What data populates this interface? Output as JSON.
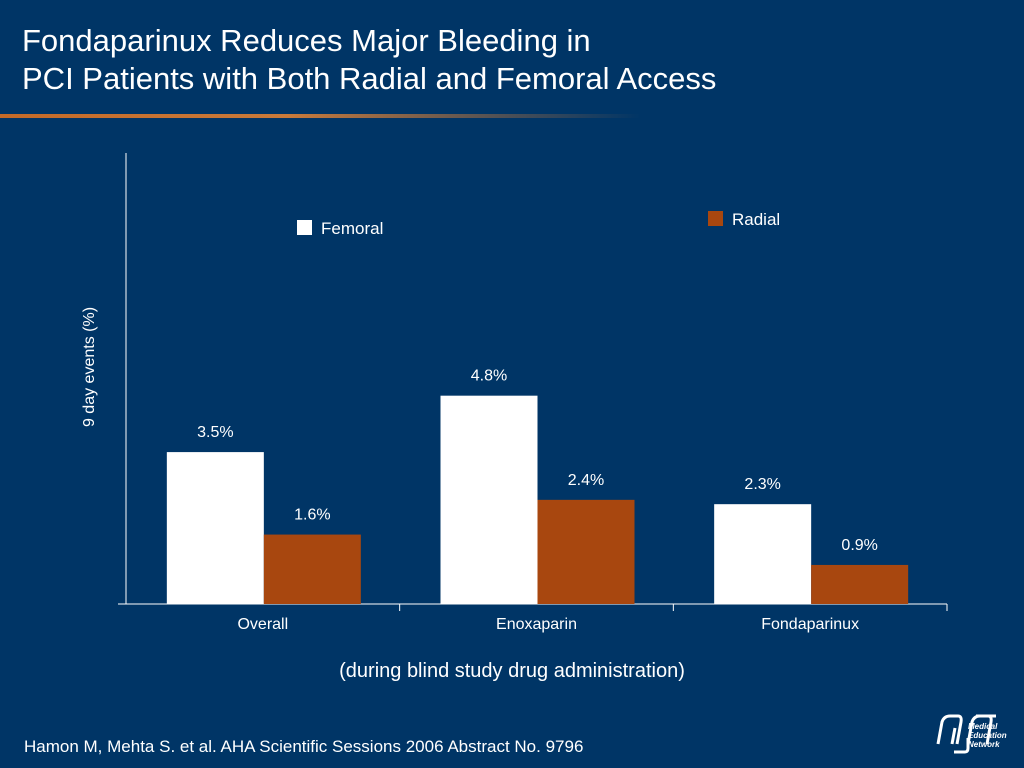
{
  "title": {
    "line1": "Fondaparinux Reduces Major Bleeding in",
    "line2": "PCI Patients with Both Radial and Femoral Access"
  },
  "subnote": "(during blind study drug administration)",
  "footer": "Hamon M, Mehta S. et al. AHA Scientific Sessions 2006 Abstract No. 9796",
  "logo": {
    "icon": "mcn-logo",
    "text_lines": [
      "Medical",
      "Education",
      "Network"
    ]
  },
  "colors": {
    "background": "#003566",
    "femoral": "#ffffff",
    "radial": "#a8470f"
  },
  "chart_data": {
    "type": "bar",
    "categories": [
      "Overall",
      "Enoxaparin",
      "Fondaparinux"
    ],
    "series": [
      {
        "name": "Femoral",
        "values": [
          3.5,
          4.8,
          2.3
        ],
        "labels": [
          "3.5%",
          "4.8%",
          "2.3%"
        ]
      },
      {
        "name": "Radial",
        "values": [
          1.6,
          2.4,
          0.9
        ],
        "labels": [
          "1.6%",
          "2.4%",
          "0.9%"
        ]
      }
    ],
    "ylabel": "9 day events (%)",
    "xlabel": "",
    "ylim": [
      0,
      10
    ],
    "grid": false,
    "legend_placement": "top"
  }
}
